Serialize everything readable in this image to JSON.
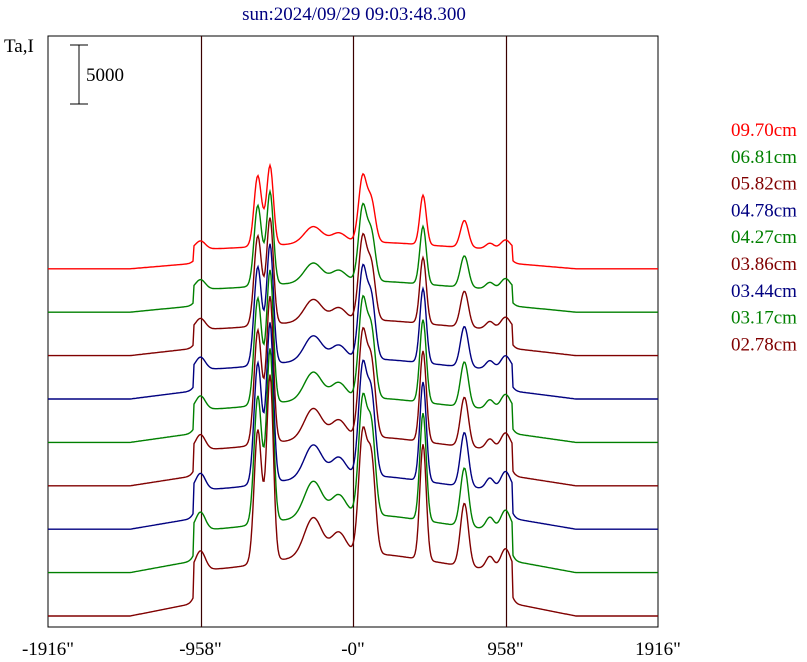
{
  "chart_data": {
    "type": "line",
    "title": "sun:2024/09/29 09:03:48.300",
    "ylabel": "Ta,I",
    "scale_bar_label": "5000",
    "x_ticks": [
      {
        "value": -1916,
        "label": "-1916\""
      },
      {
        "value": -958,
        "label": "-958\""
      },
      {
        "value": 0,
        "label": "-0\""
      },
      {
        "value": 958,
        "label": "958\""
      },
      {
        "value": 1916,
        "label": "1916\""
      }
    ],
    "x_range": [
      -1916,
      1916
    ],
    "vertical_lines_x": [
      -958,
      0,
      958
    ],
    "series": [
      {
        "name": "09.70cm",
        "color": "#ff0000"
      },
      {
        "name": "06.81cm",
        "color": "#008000"
      },
      {
        "name": "05.82cm",
        "color": "#800000"
      },
      {
        "name": "04.78cm",
        "color": "#000080"
      },
      {
        "name": "04.27cm",
        "color": "#008000"
      },
      {
        "name": "03.86cm",
        "color": "#800000"
      },
      {
        "name": "03.44cm",
        "color": "#000080"
      },
      {
        "name": "03.17cm",
        "color": "#008000"
      },
      {
        "name": "02.78cm",
        "color": "#800000"
      }
    ]
  }
}
